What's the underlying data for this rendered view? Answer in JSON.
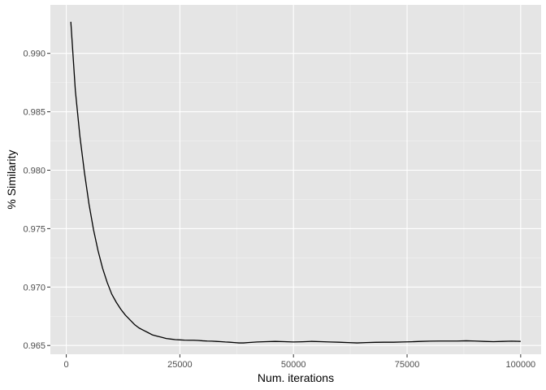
{
  "chart_data": {
    "type": "line",
    "title": "",
    "xlabel": "Num. iterations",
    "ylabel": "% Similarity",
    "xlim": [
      -3500,
      104500
    ],
    "ylim": [
      0.96425,
      0.99415
    ],
    "x_ticks": [
      0,
      25000,
      50000,
      75000,
      100000
    ],
    "x_tick_labels": [
      "0",
      "25000",
      "50000",
      "75000",
      "100000"
    ],
    "y_ticks": [
      0.965,
      0.97,
      0.975,
      0.98,
      0.985,
      0.99
    ],
    "y_tick_labels": [
      "0.965",
      "0.970",
      "0.975",
      "0.980",
      "0.985",
      "0.990"
    ],
    "grid": true,
    "theme": "ggplot2 gray",
    "series": [
      {
        "color": "#000000",
        "x": [
          1000,
          2000,
          3000,
          4000,
          5000,
          6000,
          7000,
          8000,
          9000,
          10000,
          11000,
          12000,
          13000,
          14000,
          15000,
          16000,
          17000,
          18000,
          19000,
          20000,
          21000,
          22000,
          23000,
          24000,
          25000,
          26000,
          27000,
          28000,
          29000,
          30000,
          31000,
          32000,
          33000,
          34000,
          35000,
          36000,
          37000,
          38000,
          39000,
          40000,
          42000,
          44000,
          46000,
          48000,
          50000,
          52000,
          54000,
          56000,
          58000,
          60000,
          62000,
          64000,
          66000,
          68000,
          70000,
          72000,
          74000,
          76000,
          78000,
          80000,
          82000,
          84000,
          86000,
          88000,
          90000,
          92000,
          94000,
          96000,
          98000,
          100000
        ],
        "y": [
          0.9927,
          0.9868,
          0.9829,
          0.9798,
          0.9771,
          0.9749,
          0.9731,
          0.9716,
          0.9704,
          0.9694,
          0.9687,
          0.9681,
          0.9676,
          0.9672,
          0.9668,
          0.9665,
          0.9663,
          0.9661,
          0.9659,
          0.9658,
          0.9657,
          0.9656,
          0.96555,
          0.9655,
          0.96548,
          0.96546,
          0.96545,
          0.96545,
          0.96543,
          0.9654,
          0.96538,
          0.96537,
          0.96535,
          0.96533,
          0.9653,
          0.96528,
          0.96525,
          0.96522,
          0.96522,
          0.96525,
          0.9653,
          0.96533,
          0.96535,
          0.96533,
          0.9653,
          0.96532,
          0.96535,
          0.96533,
          0.9653,
          0.96528,
          0.96525,
          0.96522,
          0.96525,
          0.96527,
          0.96528,
          0.96528,
          0.9653,
          0.96532,
          0.96535,
          0.96537,
          0.96538,
          0.96538,
          0.96538,
          0.9654,
          0.96538,
          0.96535,
          0.96533,
          0.96535,
          0.96537,
          0.96535
        ]
      }
    ]
  }
}
